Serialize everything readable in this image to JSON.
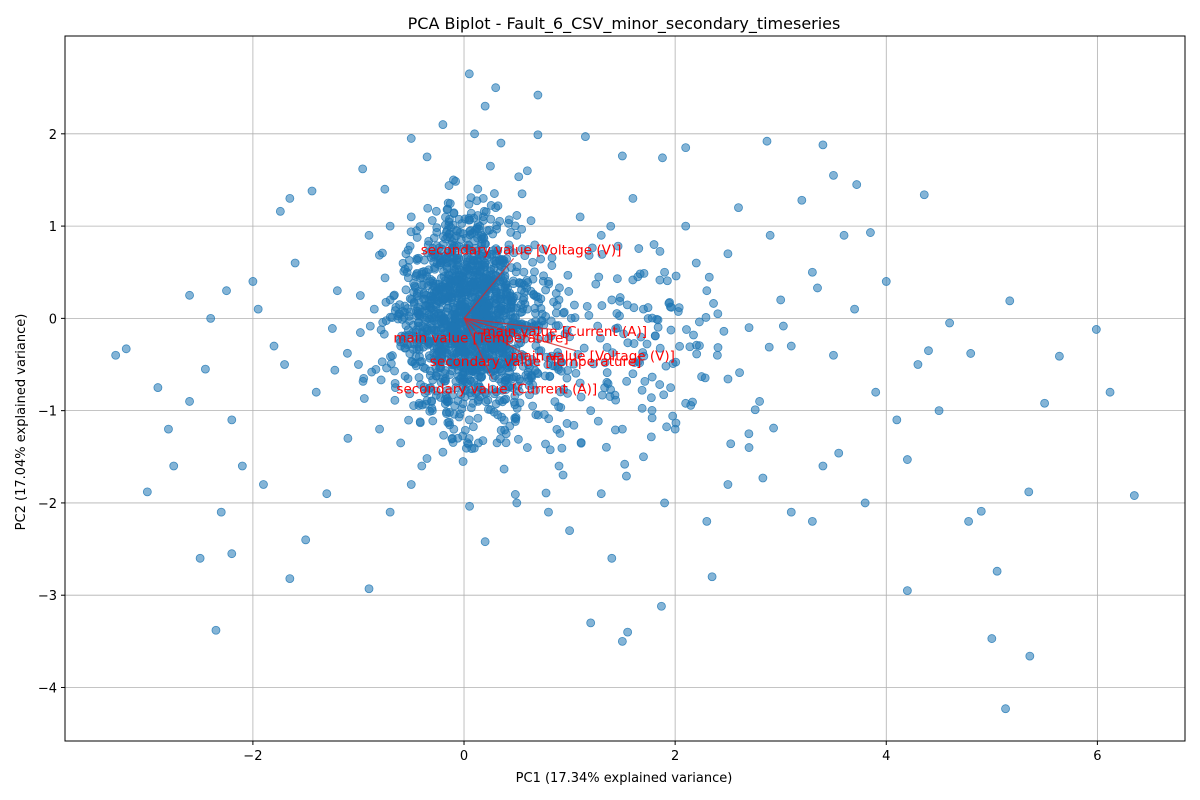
{
  "chart_data": {
    "type": "scatter",
    "title": "PCA Biplot - Fault_6_CSV_minor_secondary_timeseries",
    "xlabel": "PC1 (17.34% explained variance)",
    "ylabel": "PC2 (17.04% explained variance)",
    "xlim": [
      -3.78,
      6.83
    ],
    "ylim": [
      -4.58,
      3.06
    ],
    "xticks": [
      -2,
      0,
      2,
      4,
      6
    ],
    "yticks": [
      -4,
      -3,
      -2,
      -1,
      0,
      1,
      2
    ],
    "grid": true,
    "point_color": "#1f77b4",
    "arrow_color": "#d62728",
    "label_color": "#ff0000",
    "points": [
      [
        -0.4,
        0.5
      ],
      [
        -0.2,
        0.8
      ],
      [
        0.1,
        0.3
      ],
      [
        0.3,
        1.2
      ],
      [
        -0.6,
        -0.3
      ],
      [
        0.2,
        -0.8
      ],
      [
        -0.1,
        1.5
      ],
      [
        0.5,
        0.9
      ],
      [
        -0.5,
        1.1
      ],
      [
        0.0,
        0.0
      ],
      [
        0.4,
        -0.4
      ],
      [
        -0.3,
        -1.0
      ],
      [
        0.6,
        1.6
      ],
      [
        -0.7,
        0.2
      ],
      [
        0.1,
        2.0
      ],
      [
        0.2,
        2.3
      ],
      [
        -0.2,
        2.1
      ],
      [
        0.05,
        2.65
      ],
      [
        0.3,
        2.5
      ],
      [
        0.7,
        2.42
      ],
      [
        0.35,
        1.9
      ],
      [
        -0.8,
        -1.2
      ],
      [
        -0.9,
        0.9
      ],
      [
        0.8,
        0.4
      ],
      [
        -1.0,
        -0.5
      ],
      [
        1.0,
        -0.2
      ],
      [
        -1.2,
        0.3
      ],
      [
        1.2,
        -1.0
      ],
      [
        -1.4,
        -0.8
      ],
      [
        1.4,
        0.2
      ],
      [
        -1.6,
        0.6
      ],
      [
        1.6,
        -0.6
      ],
      [
        -1.8,
        -0.3
      ],
      [
        1.8,
        0.8
      ],
      [
        -2.0,
        0.4
      ],
      [
        2.0,
        -1.2
      ],
      [
        -2.2,
        -1.1
      ],
      [
        2.2,
        0.6
      ],
      [
        -2.4,
        0.0
      ],
      [
        2.4,
        -0.4
      ],
      [
        -2.6,
        0.25
      ],
      [
        2.6,
        1.2
      ],
      [
        -2.8,
        -1.2
      ],
      [
        2.8,
        -0.9
      ],
      [
        -3.0,
        -1.88
      ],
      [
        3.0,
        0.2
      ],
      [
        -3.3,
        -0.4
      ],
      [
        3.2,
        1.28
      ],
      [
        -3.2,
        -0.33
      ],
      [
        3.4,
        -1.6
      ],
      [
        -2.9,
        -0.75
      ],
      [
        3.6,
        0.9
      ],
      [
        -2.2,
        -2.55
      ],
      [
        3.8,
        -2.0
      ],
      [
        -2.35,
        -3.38
      ],
      [
        4.0,
        0.4
      ],
      [
        -2.5,
        -2.6
      ],
      [
        4.2,
        -2.95
      ],
      [
        -1.65,
        -2.82
      ],
      [
        4.36,
        1.34
      ],
      [
        -0.9,
        -2.93
      ],
      [
        4.4,
        -0.35
      ],
      [
        0.2,
        -2.42
      ],
      [
        4.6,
        -0.05
      ],
      [
        1.2,
        -3.3
      ],
      [
        4.8,
        -0.38
      ],
      [
        1.5,
        -3.5
      ],
      [
        5.0,
        -3.47
      ],
      [
        1.55,
        -3.4
      ],
      [
        5.05,
        -2.74
      ],
      [
        1.87,
        -3.12
      ],
      [
        5.17,
        0.19
      ],
      [
        2.35,
        -2.8
      ],
      [
        5.13,
        -4.23
      ],
      [
        2.87,
        1.92
      ],
      [
        5.36,
        -3.66
      ],
      [
        3.4,
        1.88
      ],
      [
        5.5,
        -0.92
      ],
      [
        3.72,
        1.45
      ],
      [
        5.64,
        -0.41
      ],
      [
        1.15,
        1.97
      ],
      [
        5.99,
        -0.12
      ],
      [
        1.88,
        1.74
      ],
      [
        6.12,
        -0.8
      ],
      [
        2.1,
        1.85
      ],
      [
        6.35,
        -1.92
      ],
      [
        -1.74,
        1.16
      ],
      [
        5.35,
        -1.88
      ],
      [
        -1.65,
        1.3
      ],
      [
        4.9,
        -2.09
      ],
      [
        -1.44,
        1.38
      ],
      [
        4.78,
        -2.2
      ],
      [
        -0.96,
        1.62
      ],
      [
        4.5,
        -1.0
      ],
      [
        -0.5,
        1.95
      ],
      [
        4.2,
        -1.53
      ],
      [
        0.7,
        1.99
      ],
      [
        3.85,
        0.93
      ],
      [
        1.5,
        1.76
      ],
      [
        3.5,
        1.55
      ],
      [
        0.9,
        -1.6
      ],
      [
        -0.4,
        -1.6
      ],
      [
        1.1,
        1.1
      ],
      [
        -1.1,
        -1.3
      ],
      [
        0.6,
        -1.4
      ],
      [
        -0.5,
        -1.8
      ],
      [
        0.8,
        -2.1
      ],
      [
        1.3,
        -1.9
      ],
      [
        1.7,
        -1.5
      ],
      [
        2.3,
        -2.2
      ],
      [
        2.5,
        -1.8
      ],
      [
        2.7,
        -1.4
      ],
      [
        3.1,
        -2.1
      ],
      [
        3.3,
        -2.2
      ],
      [
        1.9,
        -2.0
      ],
      [
        1.4,
        -2.6
      ],
      [
        1.0,
        -2.3
      ],
      [
        0.5,
        -2.0
      ],
      [
        -0.7,
        -2.1
      ],
      [
        -1.3,
        -1.9
      ],
      [
        -1.5,
        -2.4
      ],
      [
        -1.9,
        -1.8
      ],
      [
        -2.1,
        -1.6
      ],
      [
        -2.3,
        -2.1
      ],
      [
        -2.6,
        -0.9
      ],
      [
        -2.75,
        -1.6
      ],
      [
        -2.45,
        -0.55
      ],
      [
        -2.25,
        0.3
      ],
      [
        -1.95,
        0.1
      ],
      [
        -1.7,
        -0.5
      ],
      [
        1.3,
        0.9
      ],
      [
        1.6,
        1.3
      ],
      [
        1.9,
        0.5
      ],
      [
        2.1,
        1.0
      ],
      [
        2.3,
        0.3
      ],
      [
        2.5,
        0.7
      ],
      [
        2.7,
        -0.1
      ],
      [
        2.9,
        0.9
      ],
      [
        3.1,
        -0.3
      ],
      [
        3.3,
        0.5
      ],
      [
        3.5,
        -0.4
      ],
      [
        3.7,
        0.1
      ],
      [
        3.9,
        -0.8
      ],
      [
        4.1,
        -1.1
      ],
      [
        4.3,
        -0.5
      ],
      [
        0.9,
        0.2
      ],
      [
        0.7,
        -0.6
      ],
      [
        1.1,
        -0.7
      ],
      [
        1.5,
        -1.2
      ],
      [
        1.7,
        0.1
      ],
      [
        -0.3,
        0.3
      ],
      [
        -0.1,
        -0.5
      ],
      [
        0.2,
        0.6
      ],
      [
        -0.55,
        0.7
      ],
      [
        0.45,
        -0.1
      ],
      [
        -0.25,
        -0.45
      ],
      [
        0.15,
        1.0
      ],
      [
        -0.65,
        -0.75
      ],
      [
        0.35,
        0.45
      ],
      [
        -0.45,
        -0.15
      ],
      [
        -0.15,
        1.25
      ],
      [
        0.55,
        1.35
      ],
      [
        -0.75,
        1.4
      ],
      [
        0.25,
        1.65
      ],
      [
        -0.35,
        1.75
      ],
      [
        0.05,
        -1.1
      ],
      [
        -0.6,
        -1.35
      ],
      [
        0.4,
        -1.25
      ],
      [
        -0.2,
        -1.45
      ],
      [
        0.1,
        -0.3
      ],
      [
        -0.85,
        0.1
      ],
      [
        0.75,
        0.75
      ],
      [
        -0.95,
        -0.65
      ],
      [
        0.65,
        -0.95
      ],
      [
        -0.45,
        0.95
      ],
      [
        0.45,
        0.55
      ],
      [
        -0.05,
        0.65
      ],
      [
        0.3,
        -0.55
      ],
      [
        -0.7,
        1.0
      ],
      [
        0.6,
        0.1
      ]
    ],
    "loadings": [
      {
        "label": "secondary value [Voltage (V)]",
        "x": 0.47,
        "y": 0.65
      },
      {
        "label": "main value [Current (A)]",
        "x": 0.83,
        "y": -0.12
      },
      {
        "label": "main value [Temperature]",
        "x": 0.14,
        "y": -0.18
      },
      {
        "label": "main value [Voltage (V)]",
        "x": 1.06,
        "y": -0.35
      },
      {
        "label": "secondary value [Temperature]",
        "x": 0.59,
        "y": -0.4
      },
      {
        "label": "secondary value [Current (A)]",
        "x": 0.27,
        "y": -0.66
      }
    ]
  }
}
